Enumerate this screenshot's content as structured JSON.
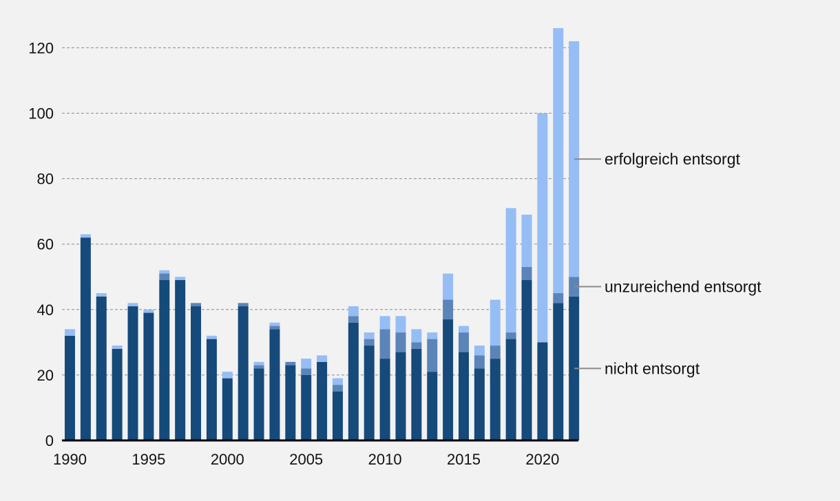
{
  "chart_data": {
    "type": "bar",
    "stacked": true,
    "title": "",
    "xlabel": "",
    "ylabel": "",
    "ylim": [
      0,
      125
    ],
    "yticks": [
      0,
      20,
      40,
      60,
      80,
      100,
      120
    ],
    "xtick_labels": [
      "1990",
      "1995",
      "2000",
      "2005",
      "2010",
      "2015",
      "2020"
    ],
    "grid": true,
    "legend_position": "right, inline labels",
    "categories": [
      1990,
      1991,
      1992,
      1993,
      1994,
      1995,
      1996,
      1997,
      1998,
      1999,
      2000,
      2001,
      2002,
      2003,
      2004,
      2005,
      2006,
      2007,
      2008,
      2009,
      2010,
      2011,
      2012,
      2013,
      2014,
      2015,
      2016,
      2017,
      2018,
      2019,
      2020,
      2021,
      2022
    ],
    "series": [
      {
        "name": "nicht entsorgt",
        "color": "#154a7a",
        "values": [
          32,
          62,
          44,
          28,
          41,
          39,
          49,
          49,
          41,
          31,
          19,
          41,
          22,
          34,
          23,
          20,
          24,
          15,
          36,
          29,
          25,
          27,
          28,
          21,
          37,
          27,
          22,
          25,
          31,
          49,
          30,
          42,
          44
        ]
      },
      {
        "name": "unzureichend entsorgt",
        "color": "#5b84b9",
        "values": [
          0,
          0,
          0,
          0,
          0,
          0,
          2,
          0,
          1,
          0,
          0,
          1,
          1,
          1,
          1,
          2,
          0,
          2,
          2,
          2,
          9,
          6,
          2,
          10,
          6,
          6,
          4,
          4,
          2,
          4,
          0,
          3,
          6
        ]
      },
      {
        "name": "erfolgreich entsorgt",
        "color": "#96bdf5",
        "values": [
          2,
          1,
          1,
          1,
          1,
          1,
          1,
          1,
          0,
          1,
          2,
          0,
          1,
          1,
          0,
          3,
          2,
          2,
          3,
          2,
          4,
          5,
          4,
          2,
          8,
          2,
          3,
          14,
          38,
          16,
          70,
          81,
          72
        ]
      }
    ]
  }
}
